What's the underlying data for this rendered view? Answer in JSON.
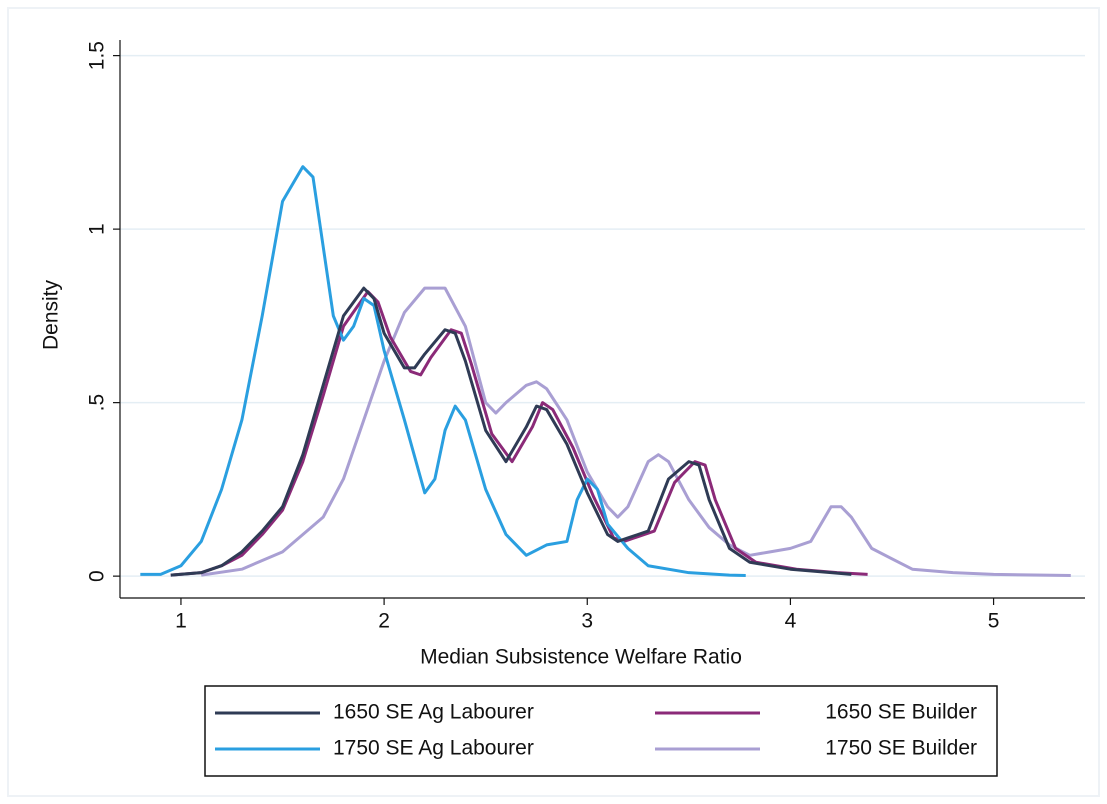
{
  "chart_data": {
    "type": "line",
    "x_label": "Median Subsistence Welfare Ratio",
    "y_label": "Density",
    "xlim": [
      0.7,
      5.45
    ],
    "ylim": [
      -0.063,
      1.545
    ],
    "xticks": [
      1,
      2,
      3,
      4,
      5
    ],
    "yticks": [
      0,
      {
        "value": 0.5,
        "label": ".5"
      },
      1,
      1.5
    ],
    "grid": true,
    "legend": "bottom",
    "series": [
      {
        "name": "1650 SE Ag Labourer",
        "color": "#2f3b55",
        "x": [
          0.95,
          1.1,
          1.2,
          1.3,
          1.4,
          1.5,
          1.6,
          1.7,
          1.8,
          1.9,
          1.95,
          2.0,
          2.1,
          2.15,
          2.2,
          2.3,
          2.35,
          2.4,
          2.5,
          2.6,
          2.7,
          2.75,
          2.8,
          2.9,
          3.0,
          3.1,
          3.15,
          3.2,
          3.3,
          3.4,
          3.5,
          3.55,
          3.6,
          3.7,
          3.8,
          4.0,
          4.2,
          4.3
        ],
        "values": [
          0.003,
          0.01,
          0.03,
          0.07,
          0.13,
          0.2,
          0.35,
          0.55,
          0.75,
          0.83,
          0.8,
          0.7,
          0.6,
          0.6,
          0.64,
          0.71,
          0.7,
          0.62,
          0.42,
          0.33,
          0.43,
          0.49,
          0.48,
          0.38,
          0.24,
          0.12,
          0.1,
          0.11,
          0.13,
          0.28,
          0.33,
          0.32,
          0.22,
          0.08,
          0.04,
          0.02,
          0.01,
          0.005
        ]
      },
      {
        "name": "1650 SE Builder",
        "color": "#8b2a78",
        "x": [
          0.95,
          1.1,
          1.2,
          1.3,
          1.4,
          1.5,
          1.6,
          1.7,
          1.8,
          1.92,
          1.97,
          2.03,
          2.13,
          2.18,
          2.23,
          2.33,
          2.38,
          2.43,
          2.53,
          2.63,
          2.73,
          2.78,
          2.83,
          2.93,
          3.03,
          3.13,
          3.18,
          3.23,
          3.33,
          3.43,
          3.53,
          3.58,
          3.63,
          3.73,
          3.83,
          4.03,
          4.23,
          4.38
        ],
        "values": [
          0.003,
          0.01,
          0.03,
          0.06,
          0.12,
          0.19,
          0.33,
          0.52,
          0.72,
          0.82,
          0.79,
          0.69,
          0.59,
          0.58,
          0.63,
          0.71,
          0.7,
          0.61,
          0.41,
          0.33,
          0.43,
          0.5,
          0.48,
          0.37,
          0.23,
          0.11,
          0.1,
          0.11,
          0.13,
          0.27,
          0.33,
          0.32,
          0.22,
          0.08,
          0.04,
          0.02,
          0.01,
          0.005
        ]
      },
      {
        "name": "1750 SE Ag Labourer",
        "color": "#2a9fe0",
        "x": [
          0.8,
          0.9,
          1.0,
          1.1,
          1.2,
          1.3,
          1.4,
          1.5,
          1.6,
          1.65,
          1.7,
          1.75,
          1.8,
          1.85,
          1.9,
          1.95,
          2.0,
          2.1,
          2.2,
          2.25,
          2.3,
          2.35,
          2.4,
          2.5,
          2.6,
          2.7,
          2.8,
          2.9,
          2.95,
          3.0,
          3.05,
          3.1,
          3.2,
          3.3,
          3.5,
          3.7,
          3.78
        ],
        "values": [
          0.005,
          0.005,
          0.03,
          0.1,
          0.25,
          0.45,
          0.75,
          1.08,
          1.18,
          1.15,
          0.95,
          0.75,
          0.68,
          0.72,
          0.8,
          0.78,
          0.65,
          0.45,
          0.24,
          0.28,
          0.42,
          0.49,
          0.45,
          0.25,
          0.12,
          0.06,
          0.09,
          0.1,
          0.22,
          0.28,
          0.25,
          0.15,
          0.08,
          0.03,
          0.01,
          0.003,
          0.002
        ]
      },
      {
        "name": "1750 SE Builder",
        "color": "#a99fd3",
        "x": [
          1.1,
          1.3,
          1.5,
          1.7,
          1.8,
          1.9,
          2.0,
          2.1,
          2.2,
          2.3,
          2.4,
          2.5,
          2.55,
          2.6,
          2.7,
          2.75,
          2.8,
          2.9,
          3.0,
          3.1,
          3.15,
          3.2,
          3.3,
          3.35,
          3.4,
          3.5,
          3.6,
          3.7,
          3.8,
          3.9,
          4.0,
          4.1,
          4.2,
          4.25,
          4.3,
          4.4,
          4.6,
          4.8,
          5.0,
          5.38
        ],
        "values": [
          0.003,
          0.02,
          0.07,
          0.17,
          0.28,
          0.45,
          0.62,
          0.76,
          0.83,
          0.83,
          0.72,
          0.5,
          0.47,
          0.5,
          0.55,
          0.56,
          0.54,
          0.45,
          0.3,
          0.2,
          0.17,
          0.2,
          0.33,
          0.35,
          0.33,
          0.22,
          0.14,
          0.09,
          0.06,
          0.07,
          0.08,
          0.1,
          0.2,
          0.2,
          0.17,
          0.08,
          0.02,
          0.01,
          0.005,
          0.002
        ]
      }
    ]
  }
}
